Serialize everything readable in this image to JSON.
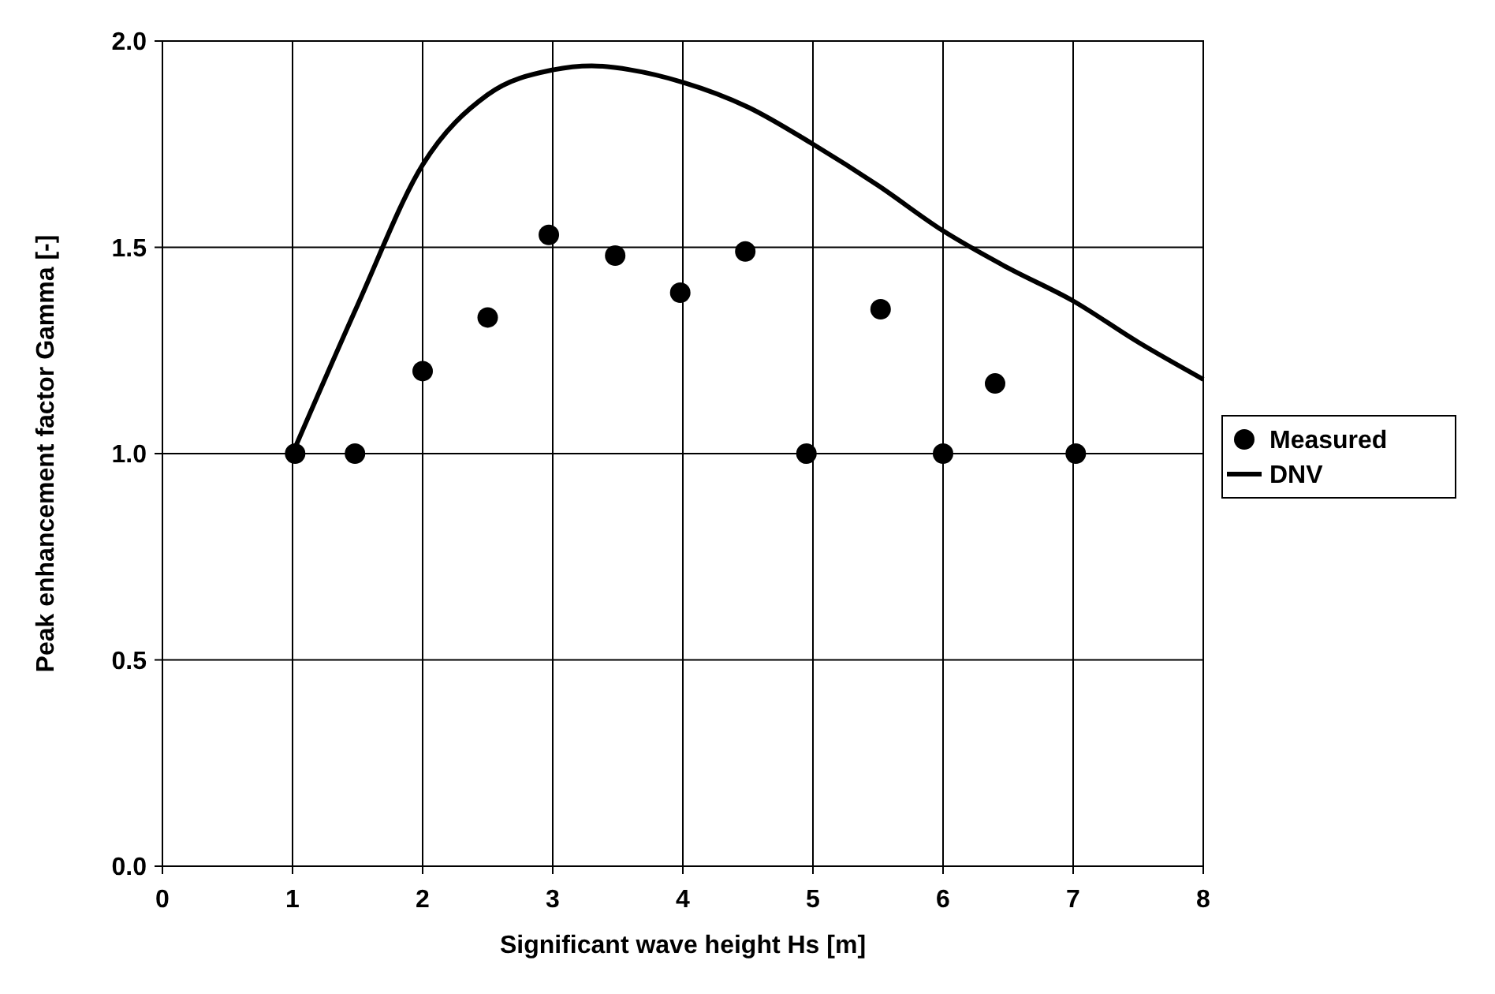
{
  "chart_data": {
    "type": "scatter",
    "xlabel": "Significant wave height Hs [m]",
    "ylabel": "Peak enhancement factor Gamma [-]",
    "xlim": [
      0,
      8
    ],
    "xticks": [
      0,
      1,
      2,
      3,
      4,
      5,
      6,
      7,
      8
    ],
    "ylim": [
      0,
      2
    ],
    "yticks": [
      {
        "value": 0,
        "label": "0.0"
      },
      {
        "value": 0.5,
        "label": "0.5"
      },
      {
        "value": 1,
        "label": "1.0"
      },
      {
        "value": 1.5,
        "label": "1.5"
      },
      {
        "value": 2,
        "label": "2.0"
      }
    ],
    "grid": true,
    "legend": "right",
    "series": [
      {
        "name": "Measured",
        "type": "scatter",
        "marker": "circle",
        "color": "#000000",
        "x": [
          1.02,
          1.48,
          2.0,
          2.5,
          2.97,
          3.48,
          3.98,
          4.48,
          4.95,
          5.52,
          6.0,
          6.4,
          7.02
        ],
        "values": [
          1.0,
          1.0,
          1.2,
          1.33,
          1.53,
          1.48,
          1.39,
          1.49,
          1.0,
          1.35,
          1.0,
          1.17,
          1.0
        ]
      },
      {
        "name": "DNV",
        "type": "line",
        "marker": "none",
        "line_style": "solid",
        "color": "#000000",
        "x": [
          1.0,
          1.5,
          2.0,
          2.5,
          3.0,
          3.3,
          3.6,
          4.0,
          4.5,
          5.0,
          5.5,
          6.0,
          6.5,
          7.0,
          7.5,
          8.0
        ],
        "values": [
          1.0,
          1.36,
          1.7,
          1.87,
          1.93,
          1.94,
          1.93,
          1.9,
          1.84,
          1.75,
          1.65,
          1.54,
          1.45,
          1.37,
          1.27,
          1.18
        ]
      }
    ]
  }
}
